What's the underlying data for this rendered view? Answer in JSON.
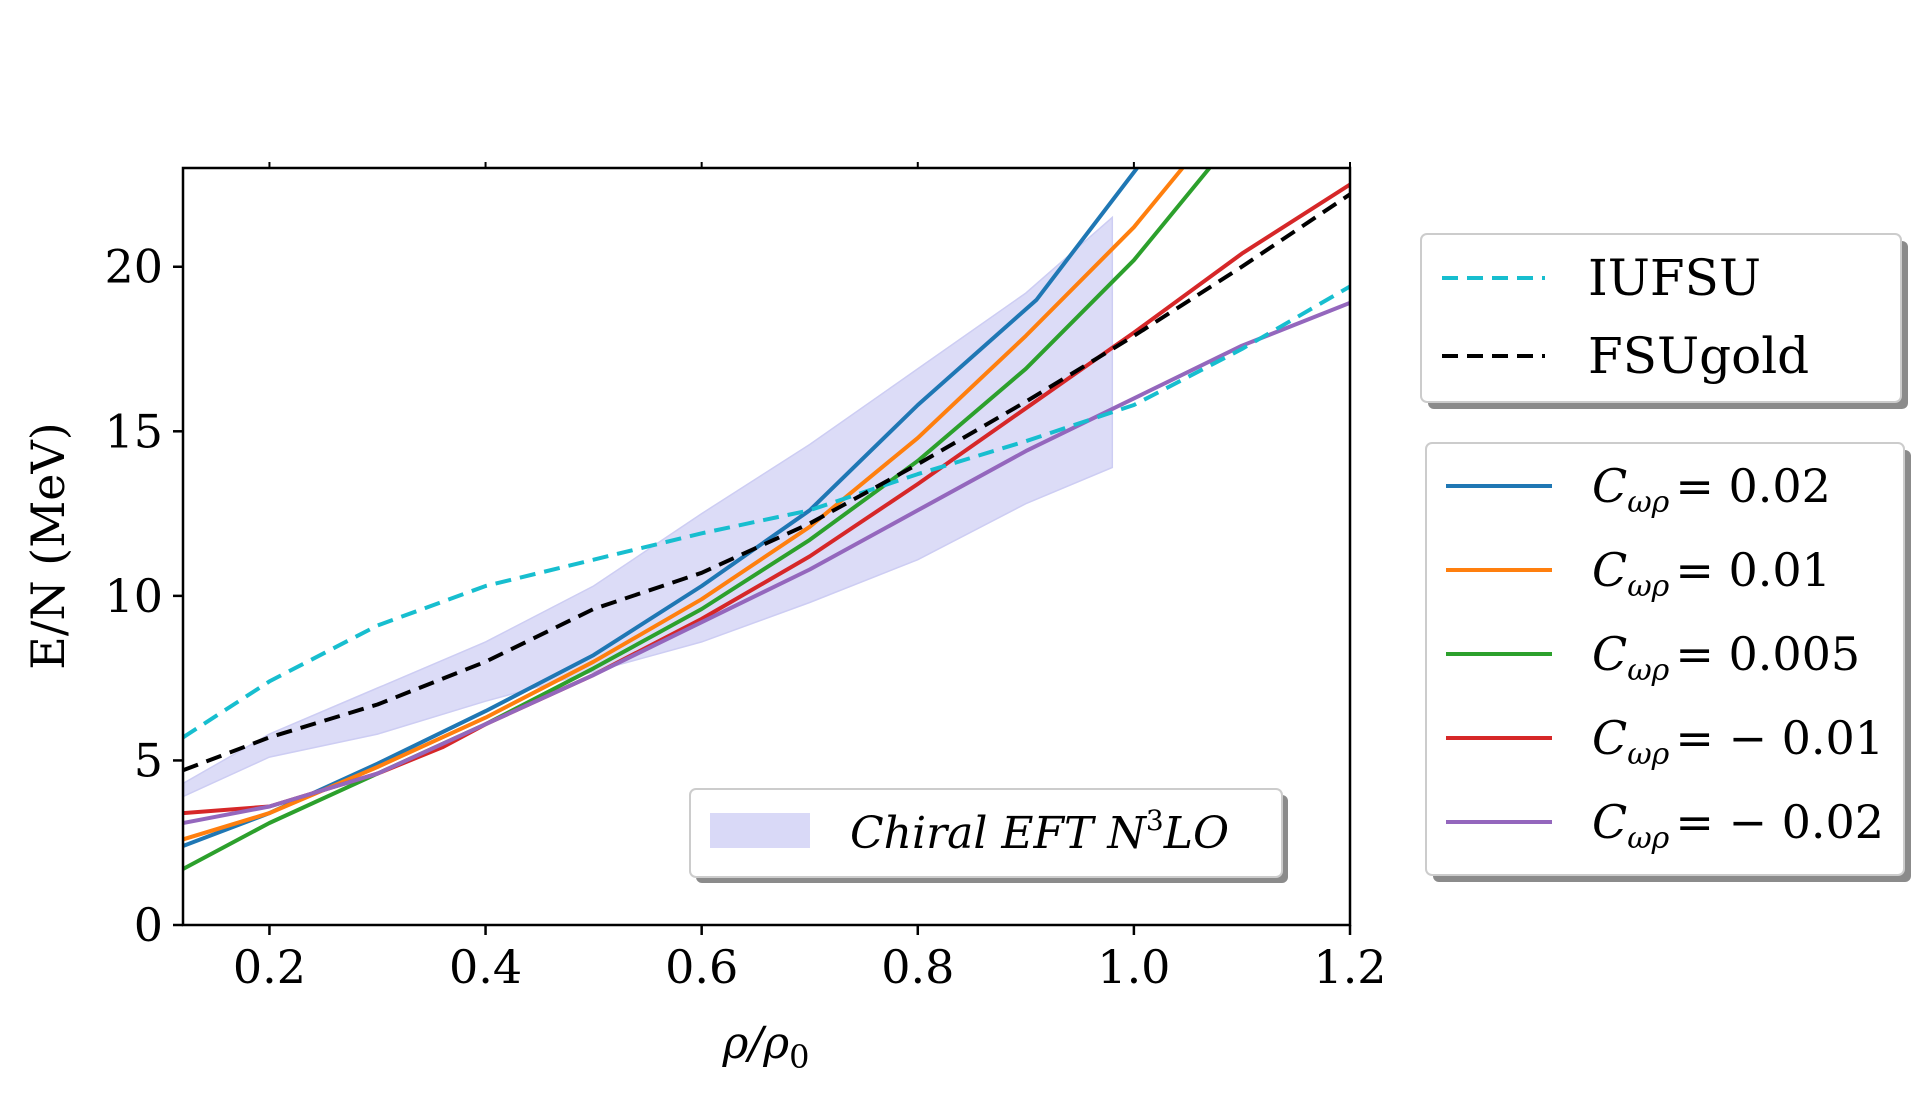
{
  "chart_data": {
    "type": "line",
    "xlabel": "ρ/ρ0",
    "ylabel": "E/N (MeV)",
    "xlim": [
      0.12,
      1.2
    ],
    "ylim": [
      0,
      23
    ],
    "xticks": [
      "0.2",
      "0.4",
      "0.6",
      "0.8",
      "1.0",
      "1.2"
    ],
    "xtick_values": [
      0.2,
      0.4,
      0.6,
      0.8,
      1.0,
      1.2
    ],
    "yticks": [
      "0",
      "5",
      "10",
      "15",
      "20"
    ],
    "ytick_values": [
      0,
      5,
      10,
      15,
      20
    ],
    "grid": false,
    "legend_placement": "right",
    "band": {
      "name": "Chiral EFT N3LO",
      "color": "#d9d9f7",
      "upper": [
        [
          0.12,
          4.3
        ],
        [
          0.2,
          5.8
        ],
        [
          0.3,
          7.2
        ],
        [
          0.4,
          8.6
        ],
        [
          0.5,
          10.3
        ],
        [
          0.6,
          12.5
        ],
        [
          0.7,
          14.6
        ],
        [
          0.8,
          16.9
        ],
        [
          0.9,
          19.2
        ],
        [
          0.98,
          21.5
        ]
      ],
      "lower": [
        [
          0.12,
          3.9
        ],
        [
          0.2,
          5.1
        ],
        [
          0.3,
          5.8
        ],
        [
          0.4,
          6.8
        ],
        [
          0.5,
          7.7
        ],
        [
          0.6,
          8.6
        ],
        [
          0.7,
          9.8
        ],
        [
          0.8,
          11.1
        ],
        [
          0.9,
          12.8
        ],
        [
          0.98,
          13.9
        ]
      ]
    },
    "series": [
      {
        "name": "IUFSU",
        "color": "#17becf",
        "dash": true,
        "points": [
          [
            0.12,
            5.7
          ],
          [
            0.2,
            7.4
          ],
          [
            0.3,
            9.1
          ],
          [
            0.4,
            10.3
          ],
          [
            0.5,
            11.1
          ],
          [
            0.6,
            11.9
          ],
          [
            0.7,
            12.6
          ],
          [
            0.8,
            13.7
          ],
          [
            0.9,
            14.7
          ],
          [
            1.0,
            15.8
          ],
          [
            1.1,
            17.5
          ],
          [
            1.2,
            19.4
          ]
        ]
      },
      {
        "name": "FSUgold",
        "color": "#000000",
        "dash": true,
        "points": [
          [
            0.12,
            4.7
          ],
          [
            0.2,
            5.7
          ],
          [
            0.3,
            6.7
          ],
          [
            0.4,
            8.0
          ],
          [
            0.5,
            9.6
          ],
          [
            0.6,
            10.7
          ],
          [
            0.7,
            12.2
          ],
          [
            0.8,
            14.0
          ],
          [
            0.9,
            15.9
          ],
          [
            1.0,
            17.9
          ],
          [
            1.1,
            20.0
          ],
          [
            1.2,
            22.2
          ]
        ]
      },
      {
        "name": "C_ωρ = 0.02",
        "color": "#1f77b4",
        "dash": false,
        "points": [
          [
            0.12,
            2.4
          ],
          [
            0.2,
            3.4
          ],
          [
            0.3,
            4.9
          ],
          [
            0.4,
            6.5
          ],
          [
            0.5,
            8.2
          ],
          [
            0.6,
            10.3
          ],
          [
            0.7,
            12.6
          ],
          [
            0.8,
            15.8
          ],
          [
            0.91,
            19.0
          ],
          [
            1.003,
            23.0
          ]
        ]
      },
      {
        "name": "C_ωρ = 0.01",
        "color": "#ff7f0e",
        "dash": false,
        "points": [
          [
            0.12,
            2.6
          ],
          [
            0.2,
            3.4
          ],
          [
            0.3,
            4.8
          ],
          [
            0.4,
            6.3
          ],
          [
            0.5,
            8.0
          ],
          [
            0.6,
            9.9
          ],
          [
            0.7,
            12.1
          ],
          [
            0.8,
            14.8
          ],
          [
            0.9,
            17.9
          ],
          [
            1.0,
            21.2
          ],
          [
            1.045,
            23.0
          ]
        ]
      },
      {
        "name": "C_ωρ = 0.005",
        "color": "#2ca02c",
        "dash": false,
        "points": [
          [
            0.12,
            1.7
          ],
          [
            0.2,
            3.1
          ],
          [
            0.3,
            4.6
          ],
          [
            0.4,
            6.1
          ],
          [
            0.5,
            7.8
          ],
          [
            0.6,
            9.6
          ],
          [
            0.7,
            11.7
          ],
          [
            0.8,
            14.1
          ],
          [
            0.9,
            16.9
          ],
          [
            1.0,
            20.2
          ],
          [
            1.07,
            23.0
          ]
        ]
      },
      {
        "name": "C_ωρ = −0.01",
        "color": "#d62728",
        "dash": false,
        "points": [
          [
            0.12,
            3.4
          ],
          [
            0.2,
            3.6
          ],
          [
            0.3,
            4.6
          ],
          [
            0.36,
            5.4
          ],
          [
            0.4,
            6.1
          ],
          [
            0.5,
            7.6
          ],
          [
            0.6,
            9.3
          ],
          [
            0.7,
            11.2
          ],
          [
            0.8,
            13.4
          ],
          [
            0.9,
            15.7
          ],
          [
            1.0,
            18.0
          ],
          [
            1.1,
            20.4
          ],
          [
            1.2,
            22.5
          ]
        ]
      },
      {
        "name": "C_ωρ = −0.02",
        "color": "#9467bd",
        "dash": false,
        "points": [
          [
            0.12,
            3.1
          ],
          [
            0.2,
            3.6
          ],
          [
            0.3,
            4.6
          ],
          [
            0.4,
            6.1
          ],
          [
            0.5,
            7.6
          ],
          [
            0.6,
            9.2
          ],
          [
            0.7,
            10.8
          ],
          [
            0.8,
            12.6
          ],
          [
            0.9,
            14.4
          ],
          [
            1.0,
            16.0
          ],
          [
            1.1,
            17.6
          ],
          [
            1.2,
            18.9
          ]
        ]
      }
    ]
  },
  "legend_top": {
    "items": [
      {
        "label": "IUFSU",
        "color": "#17becf"
      },
      {
        "label": "FSUgold",
        "color": "#000000"
      }
    ]
  },
  "legend_mid": {
    "symbol_main": "C",
    "symbol_sub": "ωρ",
    "items": [
      {
        "value": "= 0.02",
        "color": "#1f77b4"
      },
      {
        "value": "= 0.01",
        "color": "#ff7f0e"
      },
      {
        "value": "= 0.005",
        "color": "#2ca02c"
      },
      {
        "value": "= − 0.01",
        "color": "#d62728"
      },
      {
        "value": "= − 0.02",
        "color": "#9467bd"
      }
    ]
  },
  "legend_band": {
    "label_main": "Chiral EFT N",
    "label_sup": "3",
    "label_tail": "LO",
    "color": "#d9d9f7"
  },
  "axis_labels": {
    "x_main": "ρ/ρ",
    "x_sub": "0",
    "y": "E/N (MeV)"
  }
}
